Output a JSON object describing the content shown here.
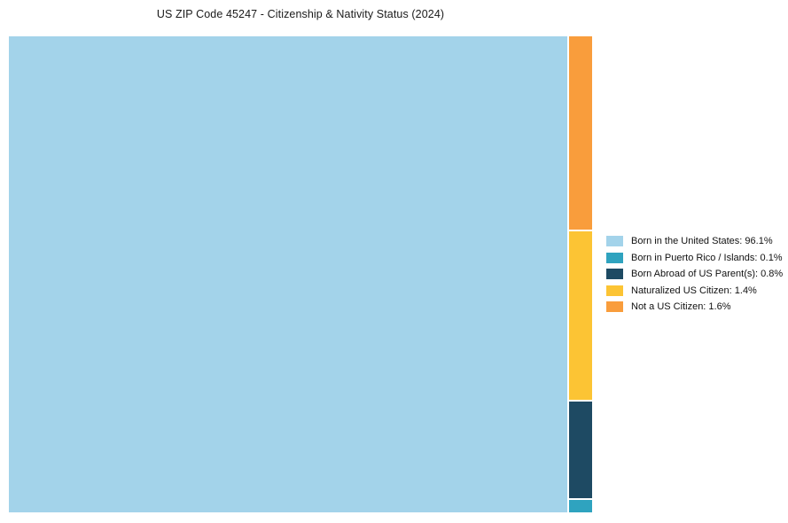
{
  "title": "US ZIP Code 45247 - Citizenship & Nativity Status (2024)",
  "chart_data": {
    "type": "treemap",
    "title": "US ZIP Code 45247 - Citizenship & Nativity Status (2024)",
    "unit": "%",
    "series": [
      {
        "label": "Born in the United States",
        "value": 96.1,
        "color": "#A3D3EA",
        "legend_label": "Born in the United States: 96.1%"
      },
      {
        "label": "Born in Puerto Rico / Islands",
        "value": 0.1,
        "color": "#2FA3BF",
        "legend_label": "Born in Puerto Rico / Islands: 0.1%"
      },
      {
        "label": "Born Abroad of US Parent(s)",
        "value": 0.8,
        "color": "#1E4A63",
        "legend_label": "Born Abroad of US Parent(s): 0.8%"
      },
      {
        "label": "Naturalized US Citizen",
        "value": 1.4,
        "color": "#FCC434",
        "legend_label": "Naturalized US Citizen: 1.4%"
      },
      {
        "label": "Not a US Citizen",
        "value": 1.6,
        "color": "#F99D3C",
        "legend_label": "Not a US Citizen: 1.6%"
      }
    ],
    "layout": {
      "main_segment_index": 0,
      "minor_column_order_top_to_bottom": [
        4,
        3,
        2,
        1
      ],
      "legend_position": "right",
      "gridlines": false,
      "background": "#ffffff"
    }
  }
}
